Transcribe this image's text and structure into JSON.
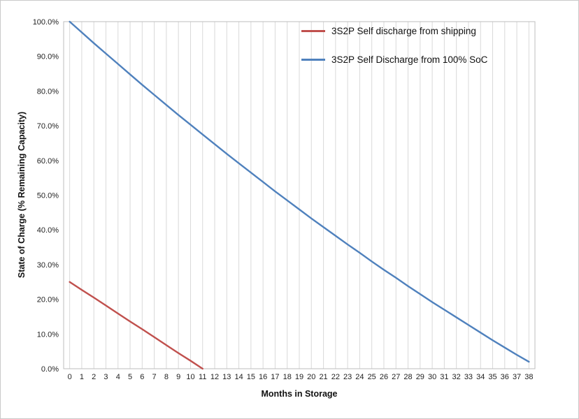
{
  "chart_data": {
    "type": "line",
    "title": "",
    "xlabel": "Months in Storage",
    "ylabel": "State of Charge (% Remaining Capacity)",
    "xlim": [
      0,
      38
    ],
    "ylim": [
      0,
      100
    ],
    "grid": "vertical-only",
    "legend_position": "inside-top-right",
    "x_ticks": [
      0,
      1,
      2,
      3,
      4,
      5,
      6,
      7,
      8,
      9,
      10,
      11,
      12,
      13,
      14,
      15,
      16,
      17,
      18,
      19,
      20,
      21,
      22,
      23,
      24,
      25,
      26,
      27,
      28,
      29,
      30,
      31,
      32,
      33,
      34,
      35,
      36,
      37,
      38
    ],
    "y_ticks": [
      0,
      10,
      20,
      30,
      40,
      50,
      60,
      70,
      80,
      90,
      100
    ],
    "y_tick_labels": [
      "0.0%",
      "10.0%",
      "20.0%",
      "30.0%",
      "40.0%",
      "50.0%",
      "60.0%",
      "70.0%",
      "80.0%",
      "90.0%",
      "100.0%"
    ],
    "series": [
      {
        "name": "3S2P Self discharge from shipping",
        "color": "#C0504D",
        "x": [
          0,
          1,
          2,
          3,
          4,
          5,
          6,
          7,
          8,
          9,
          10,
          11
        ],
        "values": [
          25.0,
          22.7,
          20.5,
          18.2,
          15.9,
          13.6,
          11.4,
          9.1,
          6.8,
          4.5,
          2.3,
          0.0
        ]
      },
      {
        "name": "3S2P Self Discharge from 100% SoC",
        "color": "#4F81BD",
        "x": [
          0,
          1,
          2,
          3,
          4,
          5,
          6,
          7,
          8,
          9,
          10,
          11,
          12,
          13,
          14,
          15,
          16,
          17,
          18,
          19,
          20,
          21,
          22,
          23,
          24,
          25,
          26,
          27,
          28,
          29,
          30,
          31,
          32,
          33,
          34,
          35,
          36,
          37,
          38
        ],
        "values": [
          100.0,
          96.9,
          93.8,
          90.8,
          87.8,
          84.8,
          81.8,
          78.9,
          76.0,
          73.1,
          70.3,
          67.5,
          64.7,
          61.9,
          59.2,
          56.5,
          53.8,
          51.1,
          48.5,
          45.9,
          43.3,
          40.8,
          38.3,
          35.8,
          33.4,
          30.9,
          28.5,
          26.2,
          23.8,
          21.5,
          19.2,
          17.0,
          14.8,
          12.6,
          10.4,
          8.2,
          6.1,
          4.0,
          2.0
        ]
      }
    ],
    "colors": {
      "grid": "#D9D9D9",
      "plot_border": "#BDBDBD",
      "tick_text": "#1F1F1F"
    }
  }
}
